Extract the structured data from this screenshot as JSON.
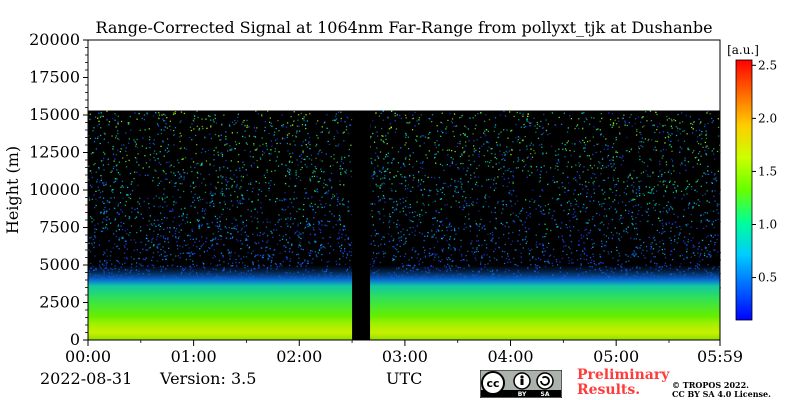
{
  "chart_data": {
    "type": "heatmap",
    "title": "Range-Corrected Signal at 1064nm Far-Range from pollyxt_tjk at Dushanbe",
    "xlabel": "UTC",
    "ylabel": "Height (m)",
    "x_ticks": [
      "00:00",
      "01:00",
      "02:00",
      "03:00",
      "04:00",
      "05:00",
      "05:59"
    ],
    "y_ticks": [
      "0",
      "2500",
      "5000",
      "7500",
      "10000",
      "12500",
      "15000",
      "17500",
      "20000"
    ],
    "ylim": [
      0,
      20000
    ],
    "xlim_hours": [
      0,
      5.983
    ],
    "data_top_height_m": 15300,
    "colorbar": {
      "unit_label": "[a.u.]",
      "range": [
        0.1,
        2.55
      ],
      "ticks": [
        "0.5",
        "1.0",
        "1.5",
        "2.0",
        "2.5"
      ],
      "colormap": "jet"
    },
    "layers": [
      {
        "height_range_m": [
          0,
          1000
        ],
        "approx_value": 1.35
      },
      {
        "height_range_m": [
          1000,
          3300
        ],
        "approx_value": 1.0
      },
      {
        "height_range_m": [
          3300,
          5000
        ],
        "approx_value": 0.45
      },
      {
        "height_range_m": [
          5000,
          15300
        ],
        "approx_value": "sparse noise 0.2-1.6"
      }
    ],
    "no_data_interval_hours": [
      2.5,
      2.67
    ]
  },
  "footer": {
    "date": "2022-08-31",
    "version": "Version: 3.5",
    "utc": "UTC",
    "preliminary_line1": "Preliminary",
    "preliminary_line2": "Results.",
    "copyright_line1": "© TROPOS 2022.",
    "copyright_line2": "CC BY SA 4.0 License."
  },
  "license_logo": {
    "text_cc": "cc",
    "text_by": "BY",
    "text_sa": "SA"
  }
}
